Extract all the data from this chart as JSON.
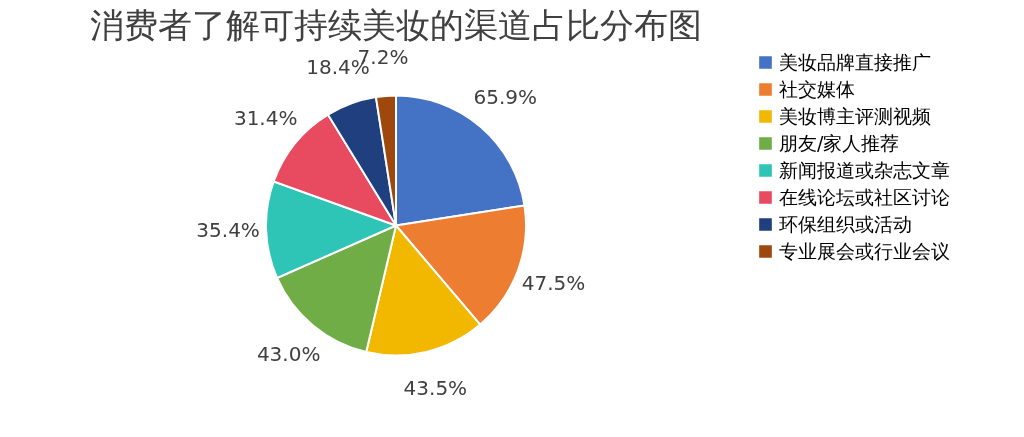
{
  "chart_data": {
    "type": "pie",
    "title": "消费者了解可持续美妆的渠道占比分布图",
    "categories": [
      "美妆品牌直接推广",
      "社交媒体",
      "美妆博主评测视频",
      "朋友/家人推荐",
      "新闻报道或杂志文章",
      "在线论坛或社区讨论",
      "环保组织或活动",
      "专业展会或行业会议"
    ],
    "values": [
      65.9,
      47.5,
      43.5,
      43.0,
      35.4,
      31.4,
      18.4,
      7.2
    ],
    "value_labels": [
      "65.9%",
      "47.5%",
      "43.5%",
      "43.0%",
      "35.4%",
      "31.4%",
      "18.4%",
      "7.2%"
    ],
    "colors": [
      "#4472c4",
      "#ed7d31",
      "#f2b800",
      "#70ad47",
      "#2ec4b6",
      "#e84a5f",
      "#1f3f7f",
      "#9e480e"
    ],
    "legend": "right"
  }
}
